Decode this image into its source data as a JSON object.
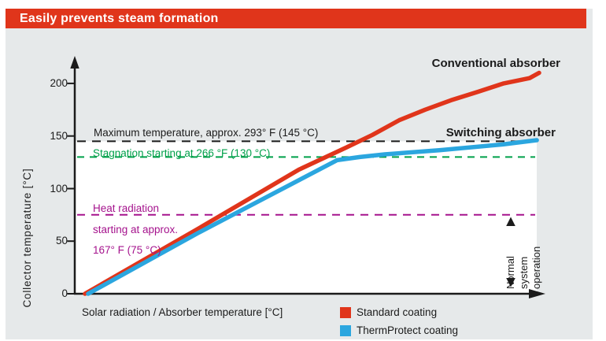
{
  "title": "Easily prevents steam formation",
  "colors": {
    "brand_red": "#e0351b",
    "panel_bg": "#e6e9ea",
    "plot_bg": "#ffffff",
    "axis_black": "#1b1b1b",
    "blue": "#2ba6df",
    "green": "#00a04a",
    "magenta": "#a5138d"
  },
  "chart_data": {
    "type": "line",
    "title": "Easily prevents steam formation",
    "xlabel": "Solar radiation / Absorber temperature [°C]",
    "ylabel": "Collector temperature [°C]",
    "xlim": [
      0,
      100
    ],
    "ylim": [
      0,
      220
    ],
    "yticks": [
      0,
      50,
      100,
      150,
      200
    ],
    "grid": false,
    "legend_position": "bottom-right",
    "series": [
      {
        "name": "Standard coating",
        "curve_label": "Conventional absorber",
        "color": "#e0351b",
        "points": [
          [
            0,
            0
          ],
          [
            24.6,
            61
          ],
          [
            47.1,
            118
          ],
          [
            57.5,
            139
          ],
          [
            63.3,
            151
          ],
          [
            69.2,
            165
          ],
          [
            74.9,
            175
          ],
          [
            80.6,
            184
          ],
          [
            86.5,
            192
          ],
          [
            92.2,
            200
          ],
          [
            97.9,
            205
          ],
          [
            100,
            210
          ]
        ]
      },
      {
        "name": "ThermProtect coating",
        "curve_label": "Switching absorber",
        "color": "#2ba6df",
        "points": [
          [
            0.7,
            0
          ],
          [
            25,
            58
          ],
          [
            55.5,
            127
          ],
          [
            60.5,
            130
          ],
          [
            66,
            132.5
          ],
          [
            78,
            136.5
          ],
          [
            92,
            142
          ],
          [
            99.5,
            146
          ]
        ]
      }
    ],
    "reference_lines": [
      {
        "value": 145,
        "color": "#1b1b1b",
        "style": "dashed",
        "label": "Maximum temperature, approx. 293° F (145 °C)"
      },
      {
        "value": 130,
        "color": "#00a04a",
        "style": "dashed",
        "label": "Stagnation starting at 266 °F (130 °C)"
      },
      {
        "value": 75,
        "color": "#a5138d",
        "style": "dashed",
        "label_lines": [
          "Heat radiation",
          "starting at approx.",
          "167° F (75 °C)"
        ]
      }
    ],
    "annotations": {
      "normal_operation_lines": [
        "Normal",
        "system",
        "operation"
      ],
      "normal_operation_range_c": [
        0,
        75
      ]
    }
  }
}
